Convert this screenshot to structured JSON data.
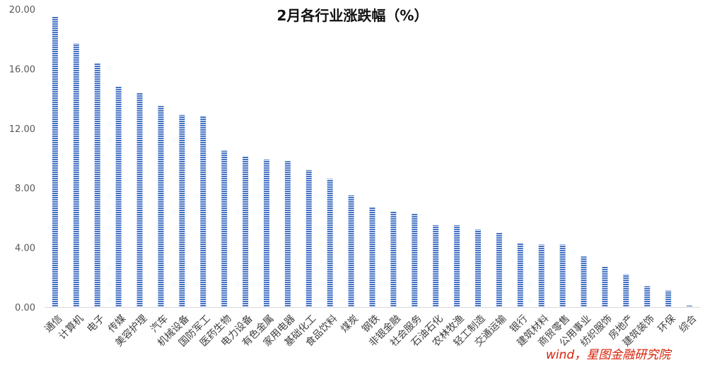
{
  "chart_data": {
    "type": "bar",
    "title": "2月各行业涨跌幅（%）",
    "xlabel": "",
    "ylabel": "",
    "ylim": [
      0,
      20
    ],
    "yticks": [
      "0.00",
      "4.00",
      "8.00",
      "12.00",
      "16.00",
      "20.00"
    ],
    "grid": false,
    "legend": "none",
    "categories": [
      "通信",
      "计算机",
      "电子",
      "传媒",
      "美容护理",
      "汽车",
      "机械设备",
      "国防军工",
      "医药生物",
      "电力设备",
      "有色金属",
      "家用电器",
      "基础化工",
      "食品饮料",
      "煤炭",
      "钢铁",
      "非银金融",
      "社会服务",
      "石油石化",
      "农林牧渔",
      "轻工制造",
      "交通运输",
      "银行",
      "建筑材料",
      "商贸零售",
      "公用事业",
      "纺织服饰",
      "房地产",
      "建筑装饰",
      "环保",
      "综合"
    ],
    "values": [
      19.5,
      17.7,
      16.4,
      14.8,
      14.4,
      13.5,
      12.9,
      12.8,
      10.5,
      10.1,
      9.9,
      9.8,
      9.2,
      8.6,
      7.5,
      6.7,
      6.4,
      6.3,
      5.5,
      5.5,
      5.2,
      5.0,
      4.3,
      4.2,
      4.2,
      3.4,
      2.7,
      2.2,
      1.4,
      1.1,
      0.1
    ],
    "bar_color": "#4472c4"
  },
  "source_note": "wind，星图金融研究院"
}
